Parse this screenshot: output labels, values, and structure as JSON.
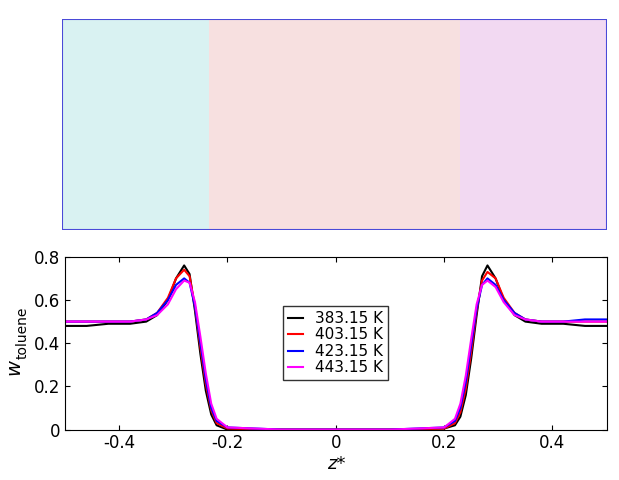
{
  "chart_data": {
    "type": "line",
    "xlabel": "z*",
    "ylabel": "w",
    "ylabel_subscript": "toluene",
    "x": [
      -0.5,
      -0.46,
      -0.42,
      -0.38,
      -0.35,
      -0.33,
      -0.31,
      -0.295,
      -0.28,
      -0.27,
      -0.26,
      -0.25,
      -0.24,
      -0.23,
      -0.22,
      -0.2,
      -0.1,
      0,
      0.1,
      0.2,
      0.22,
      0.23,
      0.24,
      0.25,
      0.26,
      0.27,
      0.28,
      0.295,
      0.31,
      0.33,
      0.35,
      0.38,
      0.42,
      0.46,
      0.5
    ],
    "series": [
      {
        "name": "383.15 K",
        "color": "#000000",
        "values": [
          0.48,
          0.48,
          0.49,
          0.49,
          0.5,
          0.53,
          0.6,
          0.7,
          0.76,
          0.72,
          0.55,
          0.35,
          0.18,
          0.07,
          0.02,
          0.0,
          0.0,
          0.0,
          0.0,
          0.005,
          0.02,
          0.06,
          0.16,
          0.33,
          0.53,
          0.71,
          0.76,
          0.7,
          0.6,
          0.53,
          0.5,
          0.49,
          0.49,
          0.48,
          0.48
        ]
      },
      {
        "name": "403.15 K",
        "color": "#ff0000",
        "values": [
          0.5,
          0.5,
          0.5,
          0.5,
          0.51,
          0.54,
          0.61,
          0.7,
          0.74,
          0.71,
          0.57,
          0.38,
          0.21,
          0.09,
          0.03,
          0.005,
          0.0,
          0.0,
          0.0,
          0.005,
          0.03,
          0.08,
          0.19,
          0.36,
          0.55,
          0.69,
          0.73,
          0.7,
          0.61,
          0.54,
          0.51,
          0.5,
          0.5,
          0.5,
          0.5
        ]
      },
      {
        "name": "423.15 K",
        "color": "#0000ff",
        "values": [
          0.5,
          0.5,
          0.5,
          0.5,
          0.51,
          0.54,
          0.6,
          0.67,
          0.7,
          0.68,
          0.57,
          0.4,
          0.23,
          0.1,
          0.04,
          0.01,
          0.0,
          0.0,
          0.0,
          0.01,
          0.04,
          0.1,
          0.22,
          0.39,
          0.56,
          0.67,
          0.7,
          0.67,
          0.6,
          0.54,
          0.51,
          0.5,
          0.5,
          0.51,
          0.51
        ]
      },
      {
        "name": "443.15 K",
        "color": "#ff00ff",
        "values": [
          0.5,
          0.5,
          0.5,
          0.5,
          0.51,
          0.53,
          0.58,
          0.65,
          0.69,
          0.68,
          0.59,
          0.43,
          0.26,
          0.12,
          0.05,
          0.01,
          0.0,
          0.0,
          0.0,
          0.01,
          0.05,
          0.12,
          0.25,
          0.42,
          0.58,
          0.67,
          0.69,
          0.66,
          0.59,
          0.53,
          0.51,
          0.5,
          0.5,
          0.5,
          0.5
        ]
      }
    ],
    "xlim": [
      -0.5,
      0.5
    ],
    "xticks": [
      -0.4,
      -0.2,
      0,
      0.2,
      0.4
    ],
    "ylim": [
      0,
      0.8
    ],
    "yticks": [
      0,
      0.2,
      0.4,
      0.6,
      0.8
    ],
    "legend": "center",
    "grid": false
  }
}
